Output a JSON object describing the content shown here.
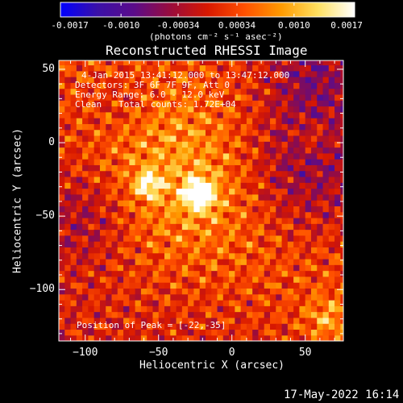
{
  "colorbar": {
    "tick_labels": [
      "-0.0017",
      "-0.0010",
      "-0.00034",
      "0.00034",
      "0.0010",
      "0.0017"
    ],
    "tick_values": [
      -0.0017,
      -0.001,
      -0.00034,
      0.00034,
      0.001,
      0.0017
    ],
    "range": [
      -0.0017,
      0.0017
    ],
    "unit_label": "(photons cm⁻² s⁻¹ asec⁻²)",
    "colors": [
      "#0000ff",
      "#3a10a8",
      "#5b0c8a",
      "#9a0c3c",
      "#d81800",
      "#ff5000",
      "#ff9a00",
      "#ffe060",
      "#ffffff"
    ]
  },
  "title": "Reconstructed RHESSI Image",
  "info": {
    "line1": "4-Jan-2015 13:41:12.000 to 13:47:12.000",
    "line2": "Detectors: 3F 6F 7F 9F, Att 0",
    "line3": "Energy Range: 6.0 - 12.0 keV",
    "line4_a": "Clean",
    "line4_b": "Total counts: 1.72E+04"
  },
  "peak_label": "Position of Peak = [-22,-35]",
  "timestamp": "17-May-2022 16:14",
  "chart_data": {
    "type": "heatmap",
    "title": "Reconstructed RHESSI Image",
    "xlabel": "Heliocentric X (arcsec)",
    "ylabel": "Heliocentric Y (arcsec)",
    "xlim": [
      -118,
      76
    ],
    "ylim": [
      -135,
      56
    ],
    "x_ticks": [
      -100,
      -50,
      0,
      50
    ],
    "y_ticks": [
      50,
      0,
      -50,
      -100
    ],
    "x_tick_labels": [
      "−100",
      "−50",
      "0",
      "50"
    ],
    "y_tick_labels": [
      "50",
      "0",
      "−50",
      "−100"
    ],
    "peak": {
      "x": -22,
      "y": -35
    },
    "secondary_peak": {
      "x": -57,
      "y": -28
    }
  }
}
